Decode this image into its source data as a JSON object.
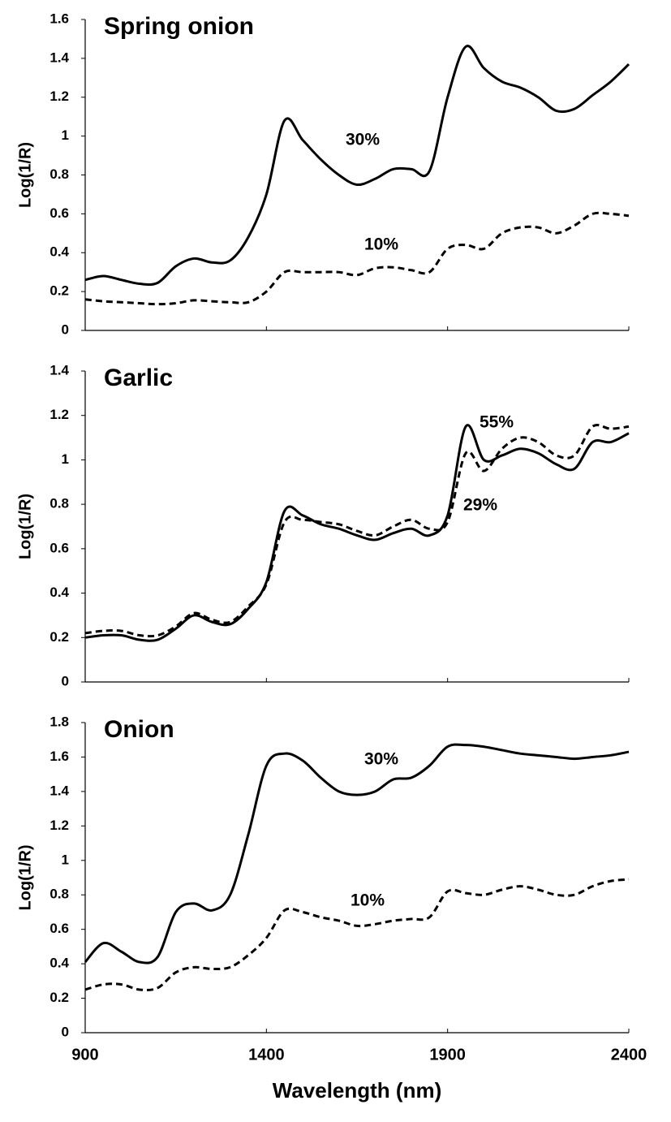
{
  "chart_data": [
    {
      "type": "line",
      "title": "Spring onion",
      "ylabel": "Log(1/R)",
      "x": [
        900,
        950,
        1000,
        1050,
        1100,
        1150,
        1200,
        1250,
        1300,
        1350,
        1400,
        1450,
        1500,
        1550,
        1600,
        1650,
        1700,
        1750,
        1800,
        1850,
        1900,
        1950,
        2000,
        2050,
        2100,
        2150,
        2200,
        2250,
        2300,
        2350,
        2400
      ],
      "xlim": [
        900,
        2400
      ],
      "xticks": [
        900,
        1400,
        1900,
        2400
      ],
      "ylim": [
        0,
        1.6
      ],
      "yticks": [
        0,
        0.2,
        0.4,
        0.6,
        0.8,
        1,
        1.2,
        1.4,
        1.6
      ],
      "series": [
        {
          "name": "30%",
          "color": "#000000",
          "style": "solid",
          "values": [
            0.26,
            0.28,
            0.26,
            0.24,
            0.245,
            0.33,
            0.37,
            0.35,
            0.36,
            0.48,
            0.7,
            1.08,
            0.98,
            0.88,
            0.8,
            0.75,
            0.78,
            0.83,
            0.83,
            0.82,
            1.2,
            1.46,
            1.35,
            1.28,
            1.25,
            1.2,
            1.13,
            1.14,
            1.21,
            1.28,
            1.37
          ]
        },
        {
          "name": "10%",
          "color": "#000000",
          "style": "dashed",
          "values": [
            0.16,
            0.15,
            0.145,
            0.14,
            0.135,
            0.14,
            0.155,
            0.15,
            0.145,
            0.145,
            0.2,
            0.3,
            0.3,
            0.3,
            0.3,
            0.285,
            0.32,
            0.325,
            0.31,
            0.3,
            0.42,
            0.44,
            0.42,
            0.5,
            0.53,
            0.53,
            0.5,
            0.54,
            0.6,
            0.6,
            0.59
          ]
        }
      ]
    },
    {
      "type": "line",
      "title": "Garlic",
      "ylabel": "Log(1/R)",
      "x": [
        900,
        950,
        1000,
        1050,
        1100,
        1150,
        1200,
        1250,
        1300,
        1350,
        1400,
        1450,
        1500,
        1550,
        1600,
        1650,
        1700,
        1750,
        1800,
        1850,
        1900,
        1950,
        2000,
        2050,
        2100,
        2150,
        2200,
        2250,
        2300,
        2350,
        2400
      ],
      "xlim": [
        900,
        2400
      ],
      "xticks": [
        900,
        1400,
        1900,
        2400
      ],
      "ylim": [
        0,
        1.4
      ],
      "yticks": [
        0,
        0.2,
        0.4,
        0.6,
        0.8,
        1,
        1.2,
        1.4
      ],
      "series": [
        {
          "name": "55%",
          "color": "#000000",
          "style": "solid",
          "values": [
            0.2,
            0.21,
            0.21,
            0.19,
            0.19,
            0.24,
            0.3,
            0.27,
            0.26,
            0.33,
            0.45,
            0.77,
            0.75,
            0.71,
            0.69,
            0.66,
            0.64,
            0.67,
            0.69,
            0.66,
            0.75,
            1.15,
            1.0,
            1.02,
            1.05,
            1.03,
            0.98,
            0.96,
            1.08,
            1.08,
            1.12
          ]
        },
        {
          "name": "29%",
          "color": "#000000",
          "style": "dashed",
          "values": [
            0.22,
            0.23,
            0.23,
            0.21,
            0.21,
            0.25,
            0.31,
            0.28,
            0.27,
            0.34,
            0.44,
            0.72,
            0.73,
            0.72,
            0.71,
            0.68,
            0.66,
            0.7,
            0.73,
            0.69,
            0.72,
            1.03,
            0.95,
            1.05,
            1.1,
            1.08,
            1.02,
            1.02,
            1.15,
            1.14,
            1.15
          ]
        }
      ]
    },
    {
      "type": "line",
      "title": "Onion",
      "ylabel": "Log(1/R)",
      "xlabel": "Wavelength (nm)",
      "x": [
        900,
        950,
        1000,
        1050,
        1100,
        1150,
        1200,
        1250,
        1300,
        1350,
        1400,
        1450,
        1500,
        1550,
        1600,
        1650,
        1700,
        1750,
        1800,
        1850,
        1900,
        1950,
        2000,
        2050,
        2100,
        2150,
        2200,
        2250,
        2300,
        2350,
        2400
      ],
      "xlim": [
        900,
        2400
      ],
      "xticks": [
        900,
        1400,
        1900,
        2400
      ],
      "ylim": [
        0,
        1.8
      ],
      "yticks": [
        0,
        0.2,
        0.4,
        0.6,
        0.8,
        1,
        1.2,
        1.4,
        1.6,
        1.8
      ],
      "series": [
        {
          "name": "30%",
          "color": "#000000",
          "style": "solid",
          "values": [
            0.41,
            0.52,
            0.47,
            0.41,
            0.44,
            0.7,
            0.75,
            0.71,
            0.8,
            1.15,
            1.55,
            1.62,
            1.58,
            1.48,
            1.4,
            1.38,
            1.4,
            1.47,
            1.48,
            1.55,
            1.66,
            1.67,
            1.66,
            1.64,
            1.62,
            1.61,
            1.6,
            1.59,
            1.6,
            1.61,
            1.63
          ]
        },
        {
          "name": "10%",
          "color": "#000000",
          "style": "dashed",
          "values": [
            0.25,
            0.28,
            0.28,
            0.25,
            0.26,
            0.35,
            0.38,
            0.37,
            0.38,
            0.45,
            0.55,
            0.71,
            0.7,
            0.67,
            0.65,
            0.62,
            0.63,
            0.65,
            0.66,
            0.67,
            0.82,
            0.81,
            0.8,
            0.83,
            0.85,
            0.83,
            0.8,
            0.8,
            0.85,
            0.88,
            0.89
          ]
        }
      ]
    }
  ]
}
